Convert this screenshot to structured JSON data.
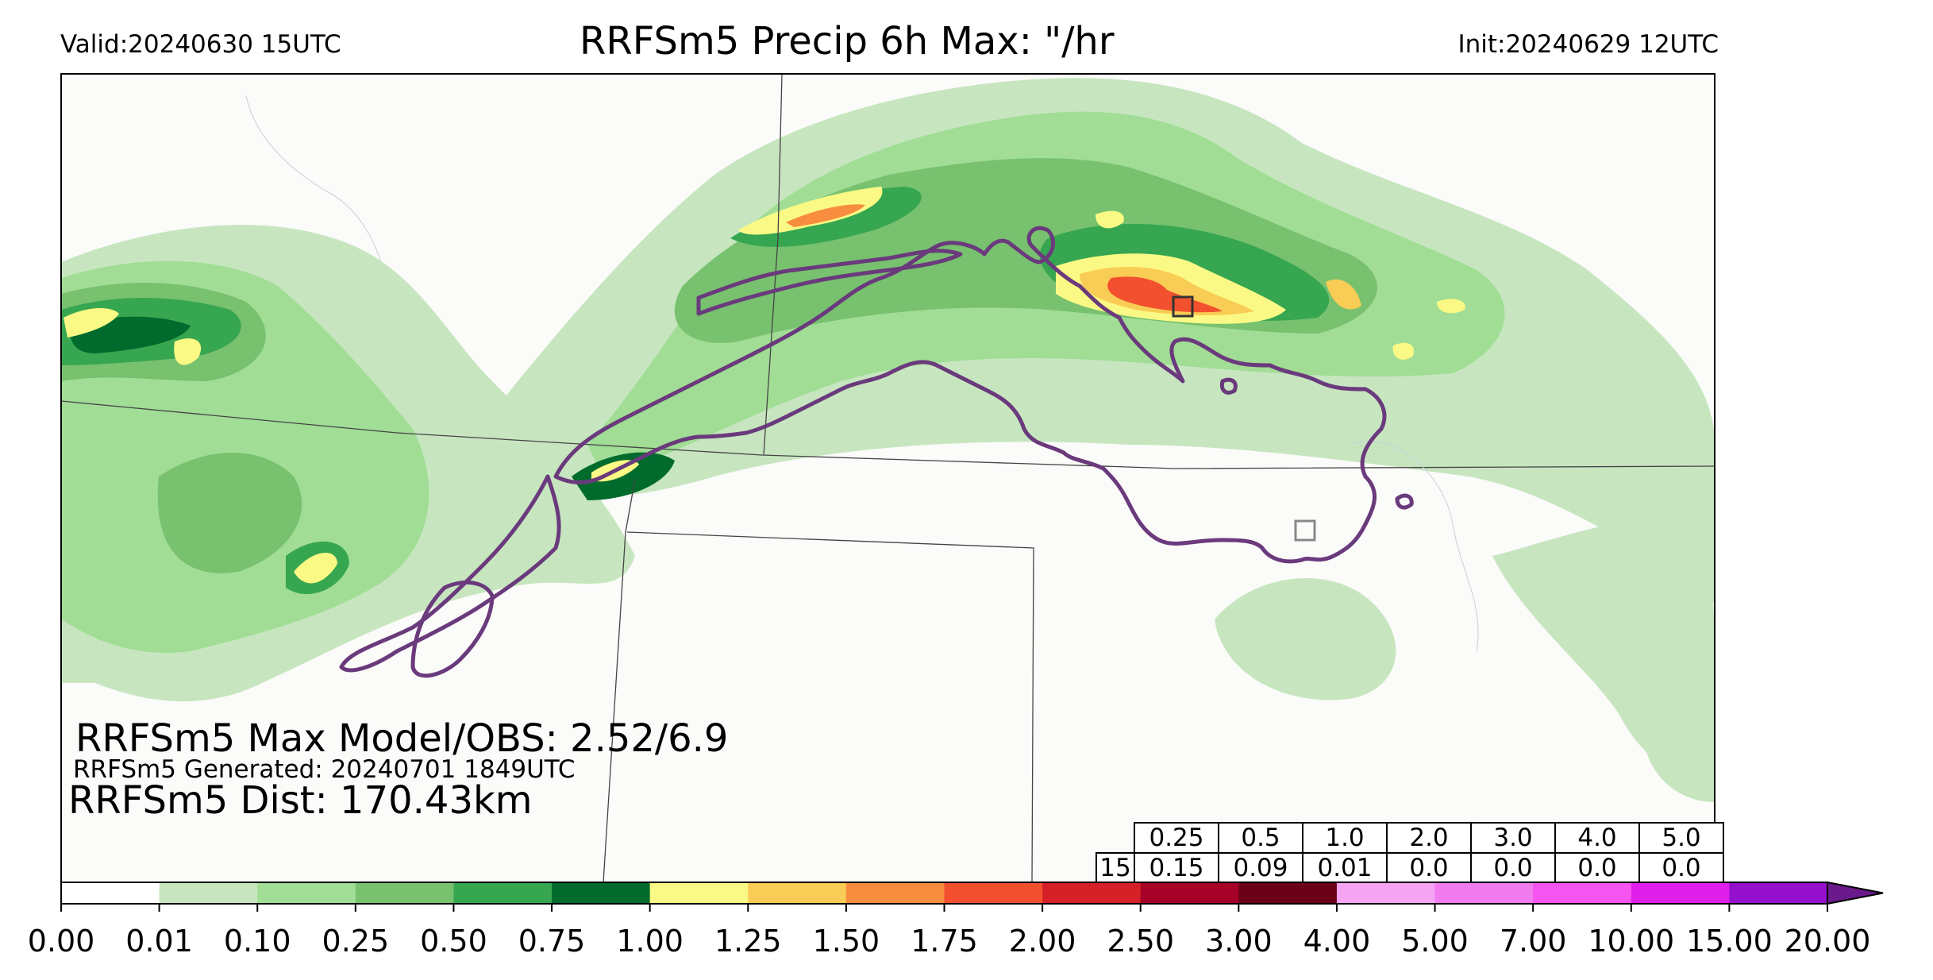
{
  "header": {
    "valid": "Valid:20240630 15UTC",
    "title": "RRFSm5 Precip 6h Max: \"/hr",
    "init": "Init:20240629 12UTC"
  },
  "annotations": {
    "max_model_obs": "RRFSm5 Max Model/OBS: 2.52/6.9",
    "generated": "RRFSm5 Generated: 20240701 1849UTC",
    "distance": "RRFSm5 Dist: 170.43km"
  },
  "stats_table": {
    "thresholds": [
      "0.25",
      "0.5",
      "1.0",
      "2.0",
      "3.0",
      "4.0",
      "5.0"
    ],
    "row_label": "15",
    "values": [
      "0.15",
      "0.09",
      "0.01",
      "0.0",
      "0.0",
      "0.0",
      "0.0"
    ]
  },
  "colorbar": {
    "levels": [
      "0.00",
      "0.01",
      "0.10",
      "0.25",
      "0.50",
      "0.75",
      "1.00",
      "1.25",
      "1.50",
      "1.75",
      "2.00",
      "2.50",
      "3.00",
      "4.00",
      "5.00",
      "7.00",
      "10.00",
      "15.00",
      "20.00"
    ],
    "colors": [
      "#ffffff",
      "#c7e6c0",
      "#a1dd95",
      "#78c16f",
      "#37a651",
      "#006b2c",
      "#fbf985",
      "#f9cc55",
      "#f88d40",
      "#f2502e",
      "#d42026",
      "#a50027",
      "#6b0018",
      "#f5a5f3",
      "#f07cf0",
      "#f554f0",
      "#e020ea",
      "#9510cc"
    ],
    "extend_color": "#6a1a8a"
  },
  "colors": {
    "outline": "#6a3a7c",
    "map_bg": "#fbfbf9",
    "border": "#444444"
  }
}
